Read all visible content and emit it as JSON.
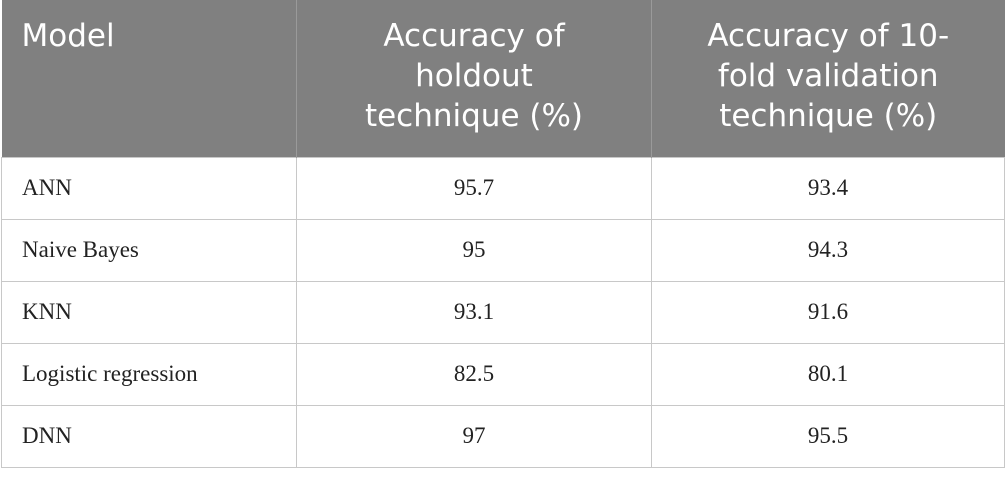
{
  "table": {
    "header": [
      [
        "Model"
      ],
      [
        "Accuracy of",
        "holdout",
        "technique (%)"
      ],
      [
        "Accuracy of 10-",
        "fold validation",
        "technique (%)"
      ]
    ],
    "rows": [
      [
        "ANN",
        95.7,
        93.4
      ],
      [
        "Naive Bayes",
        95,
        94.3
      ],
      [
        "KNN",
        93.1,
        91.6
      ],
      [
        "Logistic regression",
        82.5,
        80.1
      ],
      [
        "DNN",
        97,
        95.5
      ]
    ]
  }
}
